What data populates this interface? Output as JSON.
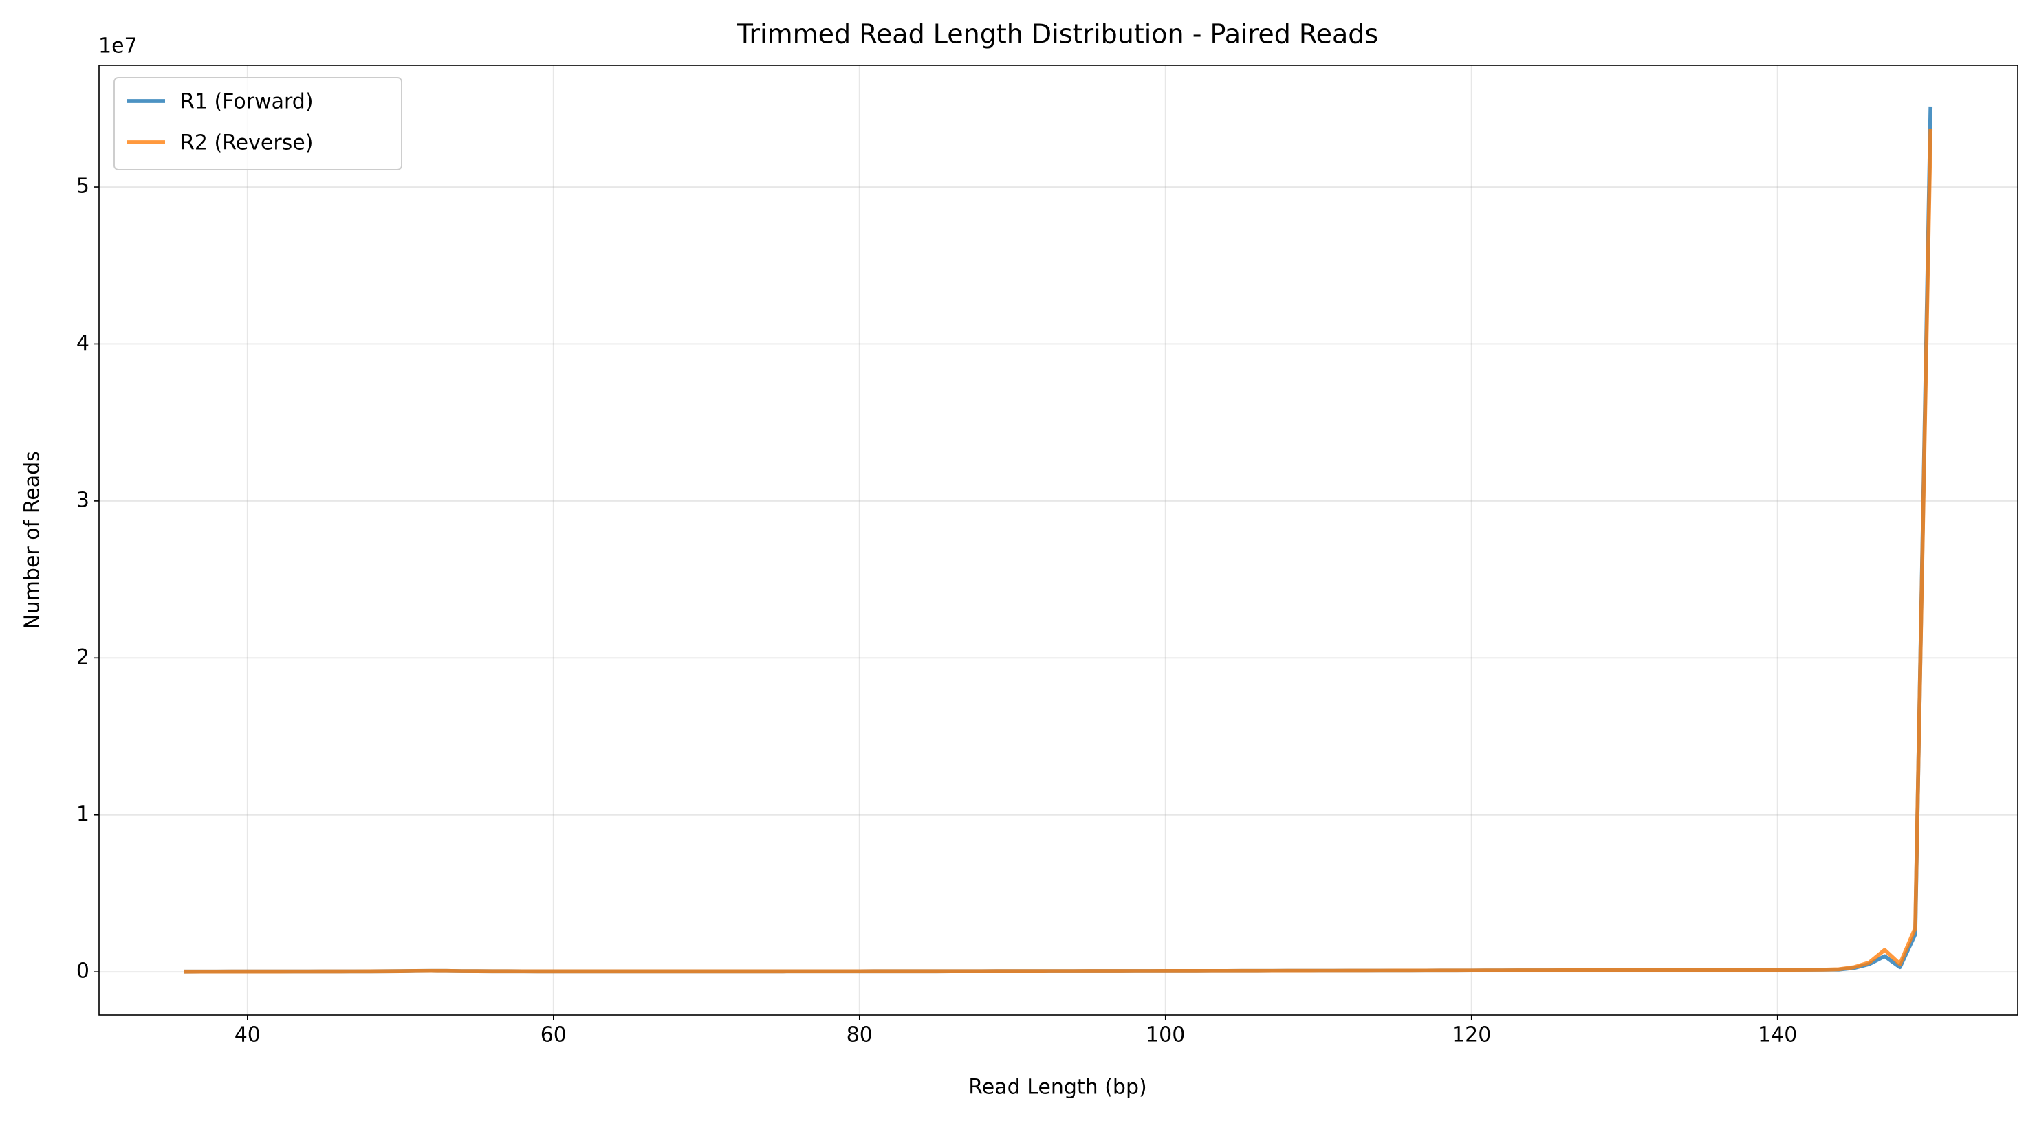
{
  "chart_data": {
    "type": "line",
    "title": "Trimmed Read Length Distribution - Paired Reads",
    "x_label": "Read Length (bp)",
    "y_label": "Number of Reads",
    "y_offset_label": "1e7",
    "x": [
      36,
      37,
      38,
      39,
      40,
      41,
      42,
      43,
      44,
      45,
      46,
      47,
      48,
      49,
      50,
      51,
      52,
      53,
      54,
      55,
      56,
      57,
      58,
      59,
      60,
      61,
      62,
      63,
      64,
      65,
      66,
      67,
      68,
      69,
      70,
      71,
      72,
      73,
      74,
      75,
      76,
      77,
      78,
      79,
      80,
      81,
      82,
      83,
      84,
      85,
      86,
      87,
      88,
      89,
      90,
      91,
      92,
      93,
      94,
      95,
      96,
      97,
      98,
      99,
      100,
      101,
      102,
      103,
      104,
      105,
      106,
      107,
      108,
      109,
      110,
      111,
      112,
      113,
      114,
      115,
      116,
      117,
      118,
      119,
      120,
      121,
      122,
      123,
      124,
      125,
      126,
      127,
      128,
      129,
      130,
      131,
      132,
      133,
      134,
      135,
      136,
      137,
      138,
      139,
      140,
      141,
      142,
      143,
      144,
      145,
      146,
      147,
      148,
      149,
      150
    ],
    "series": [
      {
        "name": "R1 (Forward)",
        "color": "#1f77b4",
        "values": [
          20000,
          21000,
          22000,
          23000,
          24000,
          25000,
          26000,
          27000,
          28000,
          29000,
          31000,
          33000,
          36000,
          40000,
          45000,
          60000,
          65000,
          62000,
          50000,
          45000,
          42000,
          40000,
          38000,
          37000,
          36000,
          35000,
          35000,
          35000,
          35000,
          35000,
          35000,
          35000,
          35000,
          35000,
          36000,
          36000,
          36000,
          37000,
          37000,
          37000,
          38000,
          38000,
          38000,
          39000,
          39000,
          40000,
          40000,
          41000,
          41000,
          42000,
          43000,
          43000,
          44000,
          45000,
          46000,
          47000,
          48000,
          49000,
          50000,
          51000,
          52000,
          53000,
          54000,
          55000,
          56000,
          57000,
          58000,
          60000,
          61000,
          62000,
          64000,
          65000,
          67000,
          68000,
          70000,
          71000,
          73000,
          75000,
          76000,
          78000,
          80000,
          82000,
          84000,
          86000,
          88000,
          90000,
          92000,
          94000,
          96000,
          98000,
          100000,
          102000,
          104000,
          106000,
          108000,
          110000,
          112000,
          114000,
          116000,
          118000,
          120000,
          122000,
          125000,
          128000,
          131000,
          134000,
          138000,
          142000,
          150000,
          250000,
          500000,
          1000000,
          300000,
          2400000,
          55000000
        ]
      },
      {
        "name": "R2 (Reverse)",
        "color": "#ff7f0e",
        "values": [
          20000,
          21000,
          22000,
          23000,
          24000,
          25000,
          26000,
          27000,
          28000,
          29000,
          31000,
          33000,
          36000,
          40000,
          45000,
          60000,
          65000,
          62000,
          50000,
          45000,
          42000,
          40000,
          38000,
          37000,
          36000,
          35000,
          35000,
          35000,
          35000,
          35000,
          35000,
          35000,
          35000,
          35000,
          36000,
          36000,
          36000,
          37000,
          37000,
          37000,
          38000,
          38000,
          38000,
          39000,
          39000,
          40000,
          40000,
          41000,
          41000,
          42000,
          43000,
          43000,
          44000,
          45000,
          46000,
          47000,
          48000,
          49000,
          50000,
          51000,
          52000,
          53000,
          54000,
          55000,
          56000,
          57000,
          58000,
          60000,
          61000,
          62000,
          64000,
          65000,
          67000,
          68000,
          70000,
          71000,
          73000,
          75000,
          76000,
          78000,
          80000,
          82000,
          84000,
          86000,
          88000,
          90000,
          92000,
          94000,
          96000,
          98000,
          100000,
          102000,
          104000,
          106000,
          108000,
          110000,
          112000,
          114000,
          116000,
          118000,
          120000,
          122000,
          125000,
          128000,
          131000,
          134000,
          138000,
          142000,
          170000,
          300000,
          600000,
          1400000,
          500000,
          2800000,
          53600000
        ]
      }
    ],
    "xlim": [
      30.3,
      155.7
    ],
    "ylim": [
      -2750000,
      57750000
    ],
    "xticks": [
      40,
      60,
      80,
      100,
      120,
      140
    ],
    "yticks": [
      0,
      {
        "value": 10000000,
        "label": "1"
      },
      {
        "value": 20000000,
        "label": "2"
      },
      {
        "value": 30000000,
        "label": "3"
      },
      {
        "value": 40000000,
        "label": "4"
      },
      {
        "value": 50000000,
        "label": "5"
      }
    ],
    "grid": true,
    "legend": "upper left"
  }
}
